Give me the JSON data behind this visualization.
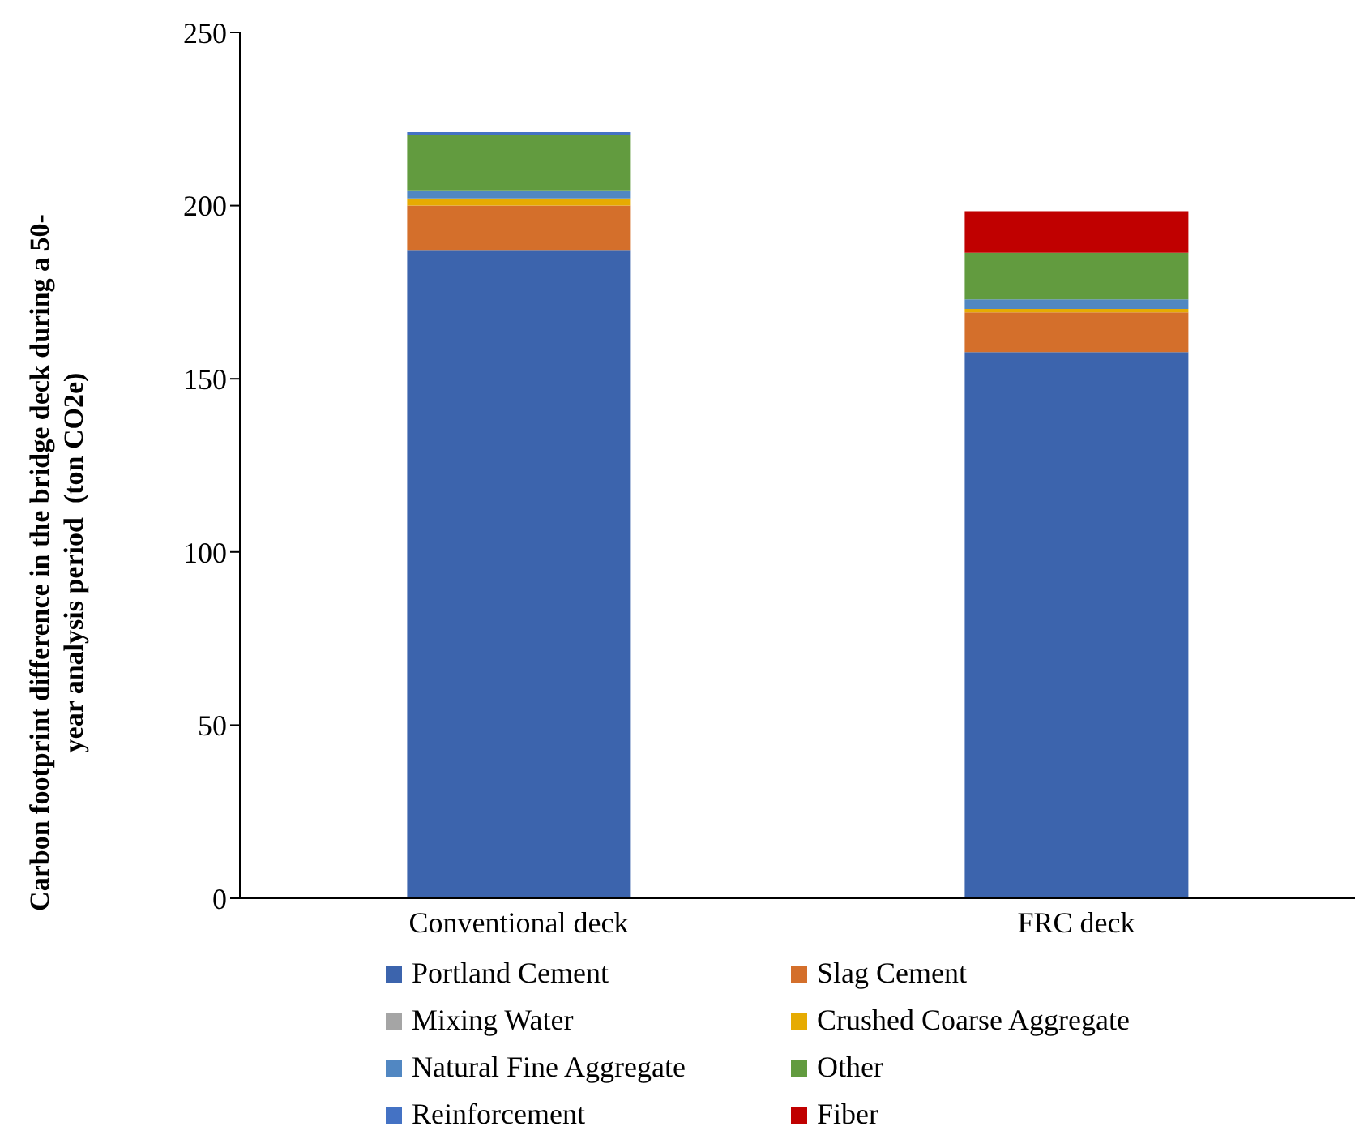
{
  "chart_data": {
    "type": "bar",
    "stacked": true,
    "ylabel": "Carbon footprint difference in the bridge deck during a 50-year analysis period  (ton CO2e)",
    "categories": [
      "Conventional deck",
      "FRC deck"
    ],
    "series": [
      {
        "name": "Portland Cement",
        "color": "#3c64ad",
        "values": [
          187.2,
          157.7
        ]
      },
      {
        "name": "Slag Cement",
        "color": "#d46f2b",
        "values": [
          12.8,
          11.5
        ]
      },
      {
        "name": "Mixing Water",
        "color": "#a5a5a5",
        "values": [
          null,
          null
        ]
      },
      {
        "name": "Crushed Coarse Aggregate",
        "color": "#e6ab02",
        "values": [
          2.1,
          1.0
        ]
      },
      {
        "name": "Natural Fine Aggregate",
        "color": "#5187c2",
        "values": [
          2.3,
          2.7
        ]
      },
      {
        "name": "Other",
        "color": "#629b3f",
        "values": [
          16,
          13.5
        ]
      },
      {
        "name": "Reinforcement",
        "color": "#4472c4",
        "values": [
          0.8,
          0
        ]
      },
      {
        "name": "Fiber",
        "color": "#c00000",
        "values": [
          0,
          12
        ]
      }
    ],
    "ylim": [
      0,
      250
    ],
    "yticks": [
      0,
      50,
      100,
      150,
      200,
      250
    ],
    "grid": false,
    "legend": "bottom"
  }
}
